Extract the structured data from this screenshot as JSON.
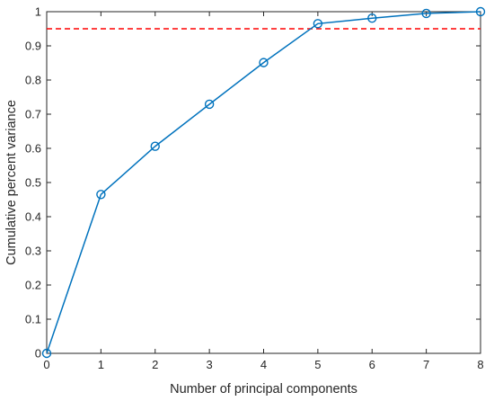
{
  "chart_data": {
    "type": "line",
    "title": "",
    "xlabel": "Number of principal components",
    "ylabel": "Cumulative percent variance",
    "xlim": [
      0,
      8
    ],
    "ylim": [
      0,
      1
    ],
    "x_ticks": [
      0,
      1,
      2,
      3,
      4,
      5,
      6,
      7,
      8
    ],
    "x_tick_labels": [
      "0",
      "1",
      "2",
      "3",
      "4",
      "5",
      "6",
      "7",
      "8"
    ],
    "y_ticks": [
      0,
      0.1,
      0.2,
      0.3,
      0.4,
      0.5,
      0.6,
      0.7,
      0.8,
      0.9,
      1
    ],
    "y_tick_labels": [
      "0",
      "0.1",
      "0.2",
      "0.3",
      "0.4",
      "0.5",
      "0.6",
      "0.7",
      "0.8",
      "0.9",
      "1"
    ],
    "grid": false,
    "series": [
      {
        "x": [
          0,
          1,
          2,
          3,
          4,
          5,
          6,
          7,
          8
        ],
        "values": [
          0,
          0.465,
          0.606,
          0.729,
          0.851,
          0.965,
          0.981,
          0.995,
          1.0
        ],
        "color": "#0072BD",
        "marker": "circle"
      }
    ],
    "reference_line": {
      "y": 0.95,
      "color": "#FF0000",
      "style": "dashed"
    }
  }
}
